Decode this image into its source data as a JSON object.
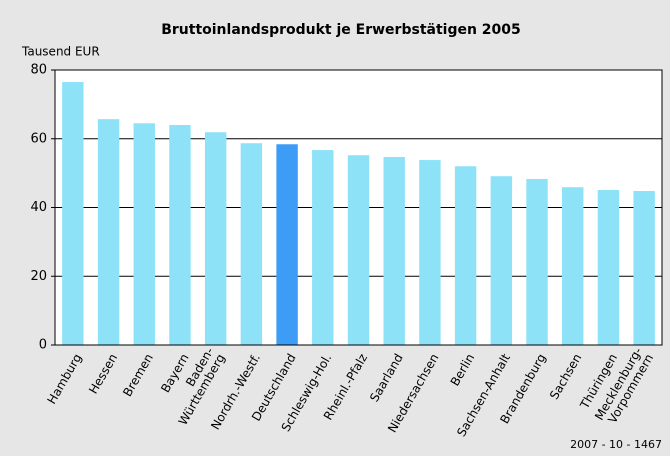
{
  "chart_data": {
    "type": "bar",
    "title": "Bruttoinlandsprodukt je Erwerbstätigen 2005",
    "ylabel": "Tausend EUR",
    "note": "2007 - 10 - 1467",
    "categories": [
      "Hamburg",
      "Hessen",
      "Bremen",
      "Bayern",
      "Baden-\nWürttemberg",
      "Nordrh.-Westf.",
      "Deutschland",
      "Schleswig-Hol.",
      "Rheinl.-Pfalz",
      "Saarland",
      "Niedersachsen",
      "Berlin",
      "Sachsen-Anhalt",
      "Brandenburg",
      "Sachsen",
      "Thüringen",
      "Mecklenburg-\nVorpommern"
    ],
    "values": [
      76.5,
      65.7,
      64.5,
      64,
      61.9,
      58.7,
      58.4,
      56.7,
      55.2,
      54.7,
      53.8,
      52,
      49.1,
      48.3,
      45.9,
      45.1,
      44.8
    ],
    "colors": [
      "#8ee2f8",
      "#8ee2f8",
      "#8ee2f8",
      "#8ee2f8",
      "#8ee2f8",
      "#8ee2f8",
      "#3d9cf6",
      "#8ee2f8",
      "#8ee2f8",
      "#8ee2f8",
      "#8ee2f8",
      "#8ee2f8",
      "#8ee2f8",
      "#8ee2f8",
      "#8ee2f8",
      "#8ee2f8",
      "#8ee2f8"
    ],
    "ylim": [
      0,
      80
    ],
    "yticks": [
      0,
      20,
      40,
      60,
      80
    ],
    "grid": true
  }
}
